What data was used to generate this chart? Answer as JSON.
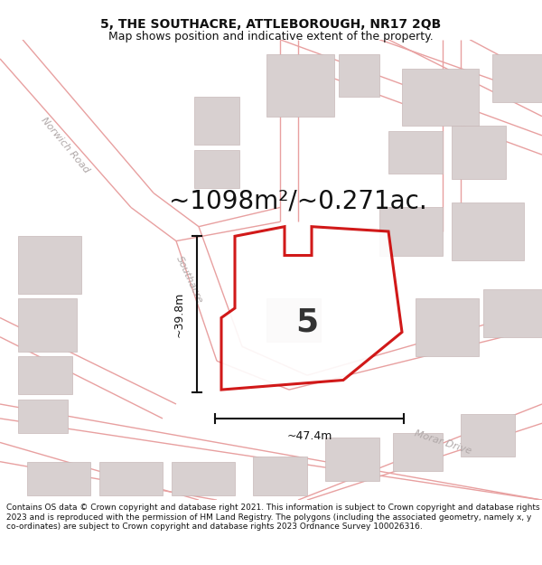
{
  "title_line1": "5, THE SOUTHACRE, ATTLEBOROUGH, NR17 2QB",
  "title_line2": "Map shows position and indicative extent of the property.",
  "area_label": "~1098m²/~0.271ac.",
  "plot_number": "5",
  "dim_vertical": "~39.8m",
  "dim_horizontal": "~47.4m",
  "footer_text": "Contains OS data © Crown copyright and database right 2021. This information is subject to Crown copyright and database rights 2023 and is reproduced with the permission of HM Land Registry. The polygons (including the associated geometry, namely x, y co-ordinates) are subject to Crown copyright and database rights 2023 Ordnance Survey 100026316.",
  "bg_color": "#ffffff",
  "map_bg": "#ffffff",
  "road_color": "#e8a0a0",
  "building_color": "#d8d0d0",
  "building_edge": "#c8b8b8",
  "plot_outline_color": "#cc0000",
  "street_label_color": "#b0a8a8",
  "dim_color": "#111111",
  "title_color": "#111111",
  "footer_color": "#111111",
  "title_fontsize": 10,
  "subtitle_fontsize": 9,
  "area_fontsize": 20,
  "plot_num_fontsize": 26,
  "dim_fontsize": 9,
  "street_fontsize": 8,
  "footer_fontsize": 6.5
}
